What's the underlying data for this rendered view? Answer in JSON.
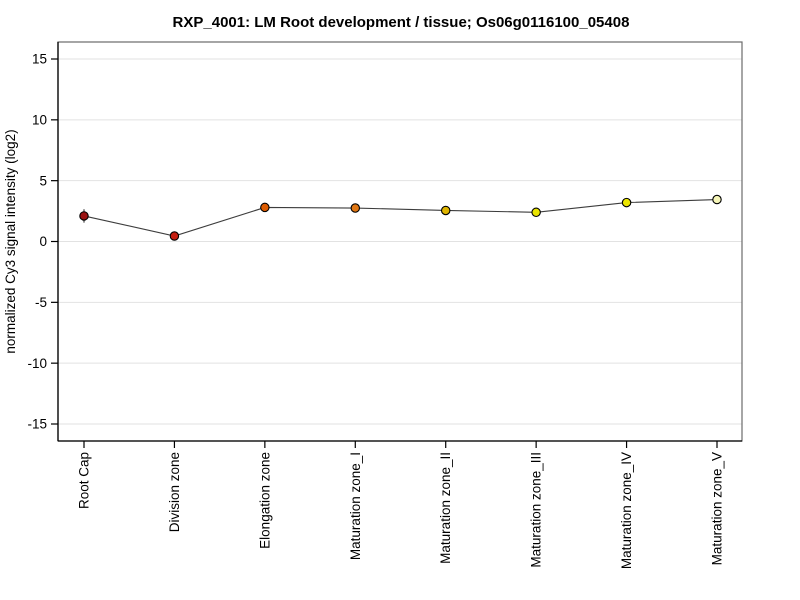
{
  "page": {
    "background": "#ffffff"
  },
  "chart_data": {
    "type": "line",
    "title": "RXP_4001: LM Root development / tissue; Os06g0116100_05408",
    "xlabel": "",
    "ylabel": "normalized Cy3 signal intensity (log2)",
    "ylim": [
      -16.5,
      16.5
    ],
    "yticks": [
      -15,
      -10,
      -5,
      0,
      5,
      10,
      15
    ],
    "grid": "horizontal-lightgray",
    "legend_position": "none",
    "categories": [
      "Root Cap",
      "Division zone",
      "Elongation zone",
      "Maturation zone_I",
      "Maturation zone_II",
      "Maturation zone_III",
      "Maturation zone_IV",
      "Maturation zone_V"
    ],
    "series": [
      {
        "name": "normalized Cy3 signal intensity (log2)",
        "values": [
          2.1,
          0.45,
          2.8,
          2.75,
          2.55,
          2.4,
          3.2,
          3.45
        ],
        "errors": [
          0.55,
          0.35,
          0.35,
          0.35,
          0.3,
          0.3,
          0.35,
          0.25
        ],
        "point_colors": [
          "#9b1313",
          "#c41d10",
          "#dd5b00",
          "#e07714",
          "#deb400",
          "#e9e400",
          "#ece600",
          "#f5f5b8"
        ],
        "line_color": "#3d3d3d",
        "marker_outline": "#000000",
        "error_bar_color": "#333333"
      }
    ],
    "colors": {
      "grid": "#e2e2e2",
      "box_border": "#6a6a6a",
      "axis": "#000000",
      "text": "#000000"
    }
  }
}
